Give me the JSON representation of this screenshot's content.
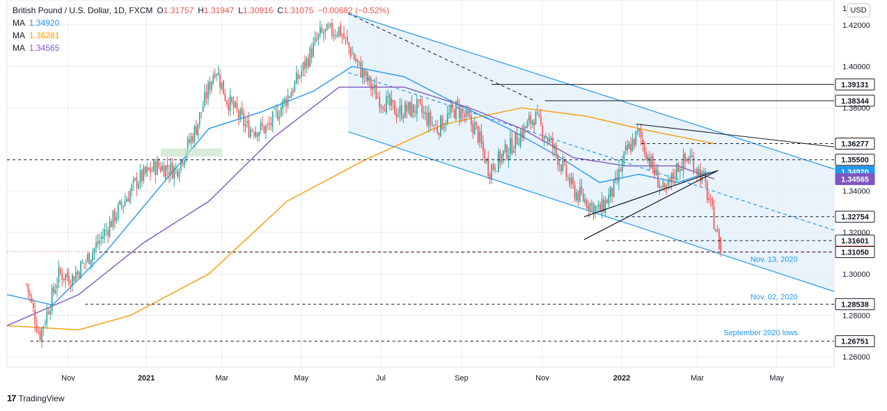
{
  "legend": {
    "symbol": "British Pound / U.S. Dollar, 1D, FXCM",
    "o_label": "O",
    "o": "1.31757",
    "h_label": "H",
    "h": "1.31947",
    "l_label": "L",
    "l": "1.30916",
    "c_label": "C",
    "c": "1.31075",
    "change": "−0.00682 (−0.52%)",
    "ma": [
      {
        "label": "MA",
        "value": "1.34920",
        "color": "#2196f3"
      },
      {
        "label": "MA",
        "value": "1.36281",
        "color": "#ff9800"
      },
      {
        "label": "MA",
        "value": "1.34565",
        "color": "#7e57c2"
      }
    ]
  },
  "currency_button": "USD",
  "footer": {
    "logo": "17",
    "brand": "TradingView"
  },
  "chart_data": {
    "type": "candlestick",
    "title": "British Pound / U.S. Dollar, 1D, FXCM",
    "ylim": [
      1.255,
      1.432
    ],
    "y_ticks": [
      "1.42000",
      "1.40000",
      "1.38000",
      "1.34000",
      "1.32000",
      "1.30000",
      "1.28000",
      "1.26000"
    ],
    "top_tick_partial": "1",
    "x_ticks": [
      {
        "label": "Nov",
        "bold": false,
        "day": 32
      },
      {
        "label": "2021",
        "bold": true,
        "day": 92
      },
      {
        "label": "Mar",
        "bold": false,
        "day": 150
      },
      {
        "label": "May",
        "bold": false,
        "day": 211
      },
      {
        "label": "Jul",
        "bold": false,
        "day": 272
      },
      {
        "label": "Sep",
        "bold": false,
        "day": 334
      },
      {
        "label": "Nov",
        "bold": false,
        "day": 396
      },
      {
        "label": "2022",
        "bold": true,
        "day": 457
      },
      {
        "label": "Mar",
        "bold": false,
        "day": 515
      },
      {
        "label": "May",
        "bold": false,
        "day": 576
      }
    ],
    "x_range_days": [
      -15,
      620
    ],
    "price_levels": [
      {
        "value": 1.39131,
        "label": "1.39131",
        "style": "solid",
        "from_day": 357,
        "tag_bg": "#ffffff",
        "tag_fg": "#131722",
        "tag_border": "#131722"
      },
      {
        "value": 1.38344,
        "label": "1.38344",
        "style": "solid",
        "from_day": 398,
        "tag_bg": "#ffffff",
        "tag_fg": "#131722",
        "tag_border": "#131722"
      },
      {
        "value": 1.36281,
        "label": "1.36281",
        "style": "none",
        "from_day": 0,
        "tag_bg": "#ff9800",
        "tag_fg": "#ffffff",
        "tag_border": "#ff9800"
      },
      {
        "value": 1.36277,
        "label": "1.36277",
        "style": "dashed",
        "from_day": 472,
        "tag_bg": "#ffffff",
        "tag_fg": "#131722",
        "tag_border": "#131722"
      },
      {
        "value": 1.355,
        "label": "1.35500",
        "style": "dashed",
        "from_day": -15,
        "tag_bg": "#ffffff",
        "tag_fg": "#131722",
        "tag_border": "#131722"
      },
      {
        "value": 1.3492,
        "label": "1.34920",
        "style": "none",
        "from_day": 0,
        "tag_bg": "#2196f3",
        "tag_fg": "#ffffff",
        "tag_border": "#2196f3"
      },
      {
        "value": 1.34565,
        "label": "1.34565",
        "style": "none",
        "from_day": 0,
        "tag_bg": "#7e57c2",
        "tag_fg": "#ffffff",
        "tag_border": "#7e57c2"
      },
      {
        "value": 1.32754,
        "label": "1.32754",
        "style": "dashed",
        "from_day": 452,
        "tag_bg": "#ffffff",
        "tag_fg": "#131722",
        "tag_border": "#131722"
      },
      {
        "value": 1.31601,
        "label": "1.31601",
        "style": "dashed",
        "from_day": 445,
        "tag_bg": "#ffffff",
        "tag_fg": "#131722",
        "tag_border": "#131722"
      },
      {
        "value": 1.31075,
        "label": "1.31075",
        "style": "dotted-red",
        "from_day": -15,
        "tag_bg": "#ef5350",
        "tag_fg": "#ffffff",
        "tag_border": "#ef5350"
      },
      {
        "value": 1.3105,
        "label": "1.31050",
        "style": "dashed",
        "from_day": 56,
        "tag_bg": "#ffffff",
        "tag_fg": "#131722",
        "tag_border": "#131722"
      },
      {
        "value": 1.28538,
        "label": "1.28538",
        "style": "dashed",
        "from_day": 45,
        "tag_bg": "#ffffff",
        "tag_fg": "#131722",
        "tag_border": "#131722"
      },
      {
        "value": 1.26751,
        "label": "1.26751",
        "style": "dashed",
        "from_day": 3,
        "tag_bg": "#ffffff",
        "tag_fg": "#131722",
        "tag_border": "#131722"
      }
    ],
    "annotations": [
      {
        "text": "Nov. 13, 2020",
        "day": 592,
        "value": 1.3058
      },
      {
        "text": "Nov. 02, 2020",
        "day": 592,
        "value": 1.2877
      },
      {
        "text": "September 2020 lows",
        "day": 592,
        "value": 1.2705
      }
    ],
    "channel": {
      "upper": [
        [
          247,
          1.4255
        ],
        [
          620,
          1.3505
        ]
      ],
      "lower": [
        [
          247,
          1.3685
        ],
        [
          620,
          1.2915
        ]
      ],
      "mid": [
        [
          247,
          1.397
        ],
        [
          620,
          1.321
        ]
      ],
      "shade_start_day": 247,
      "trend_dashed": [
        [
          247,
          1.4255
        ],
        [
          390,
          1.3834
        ]
      ],
      "trend_solid": [
        [
          468,
          1.3722
        ],
        [
          620,
          1.3612
        ]
      ]
    },
    "wedge": [
      [
        428,
        1.3165
      ],
      [
        531,
        1.3499
      ],
      [
        428,
        1.3275
      ]
    ],
    "support_box": {
      "day_start": 103,
      "day_end": 150,
      "top": 1.3605,
      "bottom": 1.3565
    },
    "bar_count": 410,
    "bar_day_start": 0,
    "bar_day_step": 1.3,
    "closes_anchor": [
      [
        0,
        1.295
      ],
      [
        10,
        1.27
      ],
      [
        25,
        1.3
      ],
      [
        35,
        1.298
      ],
      [
        50,
        1.31
      ],
      [
        70,
        1.33
      ],
      [
        85,
        1.345
      ],
      [
        100,
        1.352
      ],
      [
        115,
        1.35
      ],
      [
        130,
        1.37
      ],
      [
        145,
        1.4
      ],
      [
        153,
        1.385
      ],
      [
        170,
        1.37
      ],
      [
        185,
        1.37
      ],
      [
        205,
        1.39
      ],
      [
        225,
        1.415
      ],
      [
        240,
        1.418
      ],
      [
        255,
        1.4
      ],
      [
        270,
        1.385
      ],
      [
        285,
        1.378
      ],
      [
        300,
        1.38
      ],
      [
        315,
        1.37
      ],
      [
        330,
        1.38
      ],
      [
        345,
        1.37
      ],
      [
        355,
        1.35
      ],
      [
        370,
        1.36
      ],
      [
        390,
        1.376
      ],
      [
        405,
        1.36
      ],
      [
        420,
        1.34
      ],
      [
        440,
        1.33
      ],
      [
        452,
        1.342
      ],
      [
        460,
        1.358
      ],
      [
        470,
        1.368
      ],
      [
        480,
        1.352
      ],
      [
        490,
        1.338
      ],
      [
        500,
        1.352
      ],
      [
        510,
        1.356
      ],
      [
        520,
        1.345
      ],
      [
        528,
        1.325
      ],
      [
        533,
        1.3107
      ]
    ],
    "ma_blue": [
      [
        -15,
        1.29
      ],
      [
        20,
        1.285
      ],
      [
        60,
        1.31
      ],
      [
        100,
        1.34
      ],
      [
        140,
        1.37
      ],
      [
        180,
        1.378
      ],
      [
        220,
        1.388
      ],
      [
        250,
        1.4
      ],
      [
        290,
        1.395
      ],
      [
        330,
        1.382
      ],
      [
        370,
        1.37
      ],
      [
        410,
        1.356
      ],
      [
        440,
        1.344
      ],
      [
        470,
        1.348
      ],
      [
        500,
        1.344
      ],
      [
        525,
        1.3492
      ]
    ],
    "ma_orange": [
      [
        -15,
        1.275
      ],
      [
        40,
        1.273
      ],
      [
        80,
        1.28
      ],
      [
        140,
        1.3
      ],
      [
        200,
        1.335
      ],
      [
        260,
        1.355
      ],
      [
        320,
        1.372
      ],
      [
        380,
        1.38
      ],
      [
        430,
        1.376
      ],
      [
        470,
        1.37
      ],
      [
        510,
        1.365
      ],
      [
        528,
        1.3628
      ]
    ],
    "ma_purple": [
      [
        -15,
        1.275
      ],
      [
        40,
        1.29
      ],
      [
        90,
        1.315
      ],
      [
        140,
        1.335
      ],
      [
        190,
        1.366
      ],
      [
        240,
        1.39
      ],
      [
        290,
        1.39
      ],
      [
        340,
        1.38
      ],
      [
        380,
        1.37
      ],
      [
        420,
        1.356
      ],
      [
        460,
        1.352
      ],
      [
        500,
        1.352
      ],
      [
        528,
        1.3457
      ]
    ]
  },
  "colors": {
    "up": "#26a69a",
    "down": "#ef5350",
    "grid": "#e8eaef",
    "channel_line": "#2196f3",
    "channel_fill": "#e3f0fb"
  }
}
